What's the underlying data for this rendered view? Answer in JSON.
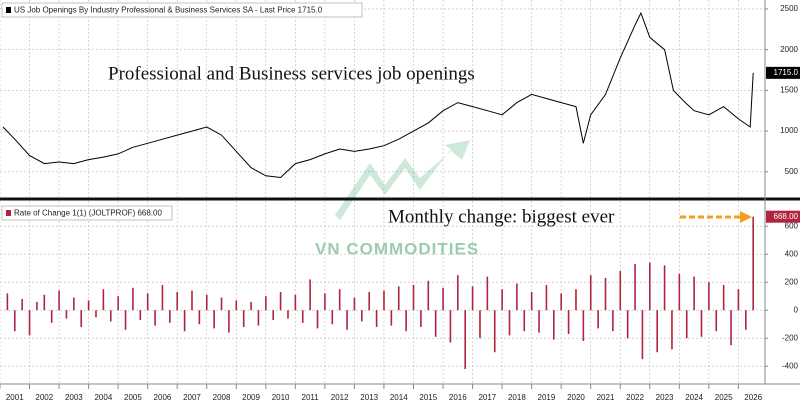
{
  "chart_data": [
    {
      "type": "line",
      "title": "US Job Openings By Industry Professional & Business Services SA - Last Price 1715.0",
      "annotation": "Professional and Business services job openings",
      "last_value_label": "1715.0",
      "color": "#000000",
      "x": [
        2000.6,
        2001.0,
        2001.5,
        2002.0,
        2002.5,
        2003.0,
        2003.5,
        2004.0,
        2004.5,
        2005.0,
        2005.5,
        2006.0,
        2006.5,
        2007.0,
        2007.5,
        2008.0,
        2008.5,
        2009.0,
        2009.5,
        2010.0,
        2010.5,
        2011.0,
        2011.5,
        2012.0,
        2012.5,
        2013.0,
        2013.5,
        2014.0,
        2014.5,
        2015.0,
        2015.5,
        2016.0,
        2016.5,
        2017.0,
        2017.5,
        2018.0,
        2018.5,
        2019.0,
        2019.5,
        2020.0,
        2020.25,
        2020.5,
        2021.0,
        2021.5,
        2022.0,
        2022.2,
        2022.5,
        2023.0,
        2023.3,
        2023.7,
        2024.0,
        2024.5,
        2025.0,
        2025.5,
        2025.9,
        2026.0
      ],
      "values": [
        1050,
        900,
        700,
        600,
        620,
        600,
        650,
        680,
        720,
        800,
        850,
        900,
        950,
        1000,
        1050,
        950,
        750,
        550,
        450,
        430,
        600,
        650,
        720,
        780,
        750,
        780,
        820,
        900,
        1000,
        1100,
        1250,
        1350,
        1300,
        1250,
        1200,
        1350,
        1450,
        1400,
        1350,
        1300,
        850,
        1200,
        1450,
        1900,
        2300,
        2450,
        2150,
        2000,
        1500,
        1350,
        1250,
        1200,
        1300,
        1150,
        1050,
        1715
      ],
      "xlim": [
        2000.5,
        2026.4
      ],
      "ylim": [
        190,
        2610
      ],
      "yticks": [
        500,
        1000,
        1500,
        2000,
        2500
      ],
      "grid": true
    },
    {
      "type": "bar",
      "title": "Rate of Change 1(1) (JOLTPROF) 668.00",
      "annotation": "Monthly change: biggest ever",
      "watermark": "VN COMMODITIES",
      "last_value_label": "668.00",
      "color": "#b0243f",
      "x": [
        2000.75,
        2001.0,
        2001.25,
        2001.5,
        2001.75,
        2002.0,
        2002.25,
        2002.5,
        2002.75,
        2003.0,
        2003.25,
        2003.5,
        2003.75,
        2004.0,
        2004.25,
        2004.5,
        2004.75,
        2005.0,
        2005.25,
        2005.5,
        2005.75,
        2006.0,
        2006.25,
        2006.5,
        2006.75,
        2007.0,
        2007.25,
        2007.5,
        2007.75,
        2008.0,
        2008.25,
        2008.5,
        2008.75,
        2009.0,
        2009.25,
        2009.5,
        2009.75,
        2010.0,
        2010.25,
        2010.5,
        2010.75,
        2011.0,
        2011.25,
        2011.5,
        2011.75,
        2012.0,
        2012.25,
        2012.5,
        2012.75,
        2013.0,
        2013.25,
        2013.5,
        2013.75,
        2014.0,
        2014.25,
        2014.5,
        2014.75,
        2015.0,
        2015.25,
        2015.5,
        2015.75,
        2016.0,
        2016.25,
        2016.5,
        2016.75,
        2017.0,
        2017.25,
        2017.5,
        2017.75,
        2018.0,
        2018.25,
        2018.5,
        2018.75,
        2019.0,
        2019.25,
        2019.5,
        2019.75,
        2020.0,
        2020.25,
        2020.5,
        2020.75,
        2021.0,
        2021.25,
        2021.5,
        2021.75,
        2022.0,
        2022.25,
        2022.5,
        2022.75,
        2023.0,
        2023.25,
        2023.5,
        2023.75,
        2024.0,
        2024.25,
        2024.5,
        2024.75,
        2025.0,
        2025.25,
        2025.5,
        2025.75,
        2026.0
      ],
      "values": [
        120,
        -150,
        80,
        -180,
        60,
        110,
        -90,
        140,
        -60,
        90,
        -120,
        70,
        -50,
        150,
        -80,
        100,
        -140,
        160,
        -70,
        120,
        -110,
        180,
        -90,
        130,
        -150,
        140,
        -100,
        110,
        -130,
        90,
        -160,
        70,
        -120,
        60,
        -110,
        100,
        -70,
        130,
        -60,
        110,
        -90,
        220,
        -130,
        120,
        -100,
        150,
        -140,
        90,
        -80,
        130,
        -120,
        140,
        -110,
        170,
        -150,
        180,
        -120,
        210,
        -190,
        160,
        -230,
        250,
        -420,
        170,
        -200,
        240,
        -300,
        150,
        -180,
        190,
        -150,
        130,
        -160,
        180,
        -210,
        120,
        -170,
        150,
        -220,
        250,
        -130,
        230,
        -150,
        280,
        -200,
        330,
        -350,
        340,
        -300,
        320,
        -280,
        260,
        -200,
        240,
        -190,
        200,
        -150,
        180,
        -250,
        150,
        -140,
        668
      ],
      "xlim": [
        2000.5,
        2026.4
      ],
      "ylim": [
        -520,
        780
      ],
      "yticks": [
        -400,
        -200,
        0,
        200,
        400,
        600
      ],
      "xticks": [
        2001,
        2002,
        2003,
        2004,
        2005,
        2006,
        2007,
        2008,
        2009,
        2010,
        2011,
        2012,
        2013,
        2014,
        2015,
        2016,
        2017,
        2018,
        2019,
        2020,
        2021,
        2022,
        2023,
        2024,
        2025,
        2026
      ],
      "grid": true
    }
  ]
}
